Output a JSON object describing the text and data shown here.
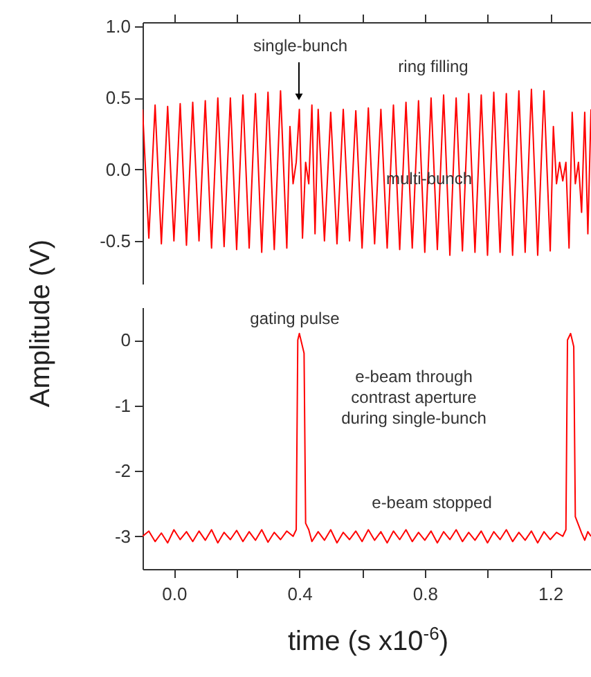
{
  "chart_data": [
    {
      "type": "line",
      "ylabel": "Amplitude (V)",
      "xlim": [
        -0.1,
        1.33
      ],
      "ylim": [
        -0.8,
        1.03
      ],
      "xticks": [
        {
          "value": 0,
          "label": null
        },
        {
          "value": 0.2,
          "label": null
        },
        {
          "value": 0.4,
          "label": null
        },
        {
          "value": 0.6,
          "label": null
        },
        {
          "value": 0.8,
          "label": null
        },
        {
          "value": 1.0,
          "label": null
        },
        {
          "value": 1.2,
          "label": null
        }
      ],
      "yticks": [
        {
          "value": 1,
          "label": "1.0"
        },
        0.5,
        {
          "value": 0,
          "label": "0.0"
        },
        -0.5
      ],
      "tick_labels": "y",
      "grid": false,
      "marker": "none",
      "line_style": "solid",
      "annotations": [
        "single-bunch",
        "ring filling",
        "multi-bunch"
      ],
      "series": [
        {
          "color": "#ff0000",
          "x": [
            -0.1,
            -0.08,
            -0.06,
            -0.04,
            -0.02,
            0,
            0.02,
            0.04,
            0.06,
            0.08,
            0.1,
            0.12,
            0.14,
            0.16,
            0.18,
            0.2,
            0.22,
            0.24,
            0.26,
            0.28,
            0.3,
            0.32,
            0.34,
            0.36,
            0.37,
            0.38,
            0.39,
            0.4,
            0.41,
            0.42,
            0.43,
            0.44,
            0.45,
            0.46,
            0.48,
            0.5,
            0.52,
            0.54,
            0.56,
            0.58,
            0.6,
            0.62,
            0.64,
            0.66,
            0.68,
            0.7,
            0.72,
            0.74,
            0.76,
            0.78,
            0.8,
            0.82,
            0.84,
            0.86,
            0.88,
            0.9,
            0.92,
            0.94,
            0.96,
            0.98,
            1.0,
            1.02,
            1.04,
            1.06,
            1.08,
            1.1,
            1.12,
            1.14,
            1.16,
            1.18,
            1.2,
            1.21,
            1.22,
            1.23,
            1.24,
            1.25,
            1.26,
            1.27,
            1.28,
            1.29,
            1.3,
            1.31,
            1.32,
            1.33
          ],
          "values": [
            0.42,
            -0.48,
            0.45,
            -0.52,
            0.44,
            -0.5,
            0.46,
            -0.53,
            0.47,
            -0.5,
            0.48,
            -0.55,
            0.5,
            -0.54,
            0.5,
            -0.56,
            0.52,
            -0.55,
            0.53,
            -0.58,
            0.54,
            -0.56,
            0.55,
            -0.55,
            0.3,
            -0.1,
            0.05,
            0.42,
            -0.48,
            0.05,
            -0.1,
            0.45,
            -0.45,
            0.42,
            -0.5,
            0.4,
            -0.52,
            0.42,
            -0.5,
            0.41,
            -0.55,
            0.43,
            -0.52,
            0.42,
            -0.55,
            0.45,
            -0.56,
            0.47,
            -0.55,
            0.48,
            -0.58,
            0.5,
            -0.56,
            0.52,
            -0.6,
            0.5,
            -0.57,
            0.53,
            -0.58,
            0.52,
            -0.6,
            0.54,
            -0.58,
            0.53,
            -0.6,
            0.55,
            -0.58,
            0.56,
            -0.6,
            0.55,
            -0.57,
            0.3,
            -0.1,
            0.05,
            -0.08,
            0.05,
            -0.55,
            0.4,
            -0.1,
            0.05,
            -0.3,
            0.4,
            -0.45,
            0.42
          ]
        }
      ]
    },
    {
      "type": "line",
      "xlabel": "time (s x10$^{-6}$)",
      "xlim": [
        -0.1,
        1.33
      ],
      "ylim": [
        -3.5,
        0.5
      ],
      "xticks": [
        {
          "value": 0,
          "label": "0.0"
        },
        {
          "value": 0.2,
          "label": null
        },
        0.4,
        {
          "value": 0.6,
          "label": null
        },
        0.8,
        {
          "value": 1.0,
          "label": null
        },
        1.2
      ],
      "yticks": [
        0,
        -1,
        -2,
        -3
      ],
      "grid": false,
      "marker": "none",
      "line_style": "solid",
      "annotations": [
        "gating pulse",
        "e-beam through\ncontrast aperture\nduring single-bunch",
        "e-beam stopped"
      ],
      "series": [
        {
          "color": "#ff0000",
          "x": [
            -0.1,
            -0.08,
            -0.06,
            -0.04,
            -0.02,
            0,
            0.02,
            0.04,
            0.06,
            0.08,
            0.1,
            0.12,
            0.14,
            0.16,
            0.18,
            0.2,
            0.22,
            0.24,
            0.26,
            0.28,
            0.3,
            0.32,
            0.34,
            0.36,
            0.38,
            0.39,
            0.395,
            0.4,
            0.41,
            0.415,
            0.42,
            0.43,
            0.44,
            0.46,
            0.48,
            0.5,
            0.52,
            0.54,
            0.56,
            0.58,
            0.6,
            0.62,
            0.64,
            0.66,
            0.68,
            0.7,
            0.72,
            0.74,
            0.76,
            0.78,
            0.8,
            0.82,
            0.84,
            0.86,
            0.88,
            0.9,
            0.92,
            0.94,
            0.96,
            0.98,
            1.0,
            1.02,
            1.04,
            1.06,
            1.08,
            1.1,
            1.12,
            1.14,
            1.16,
            1.18,
            1.2,
            1.22,
            1.24,
            1.25,
            1.255,
            1.265,
            1.275,
            1.28,
            1.3,
            1.31,
            1.32,
            1.33
          ],
          "values": [
            -3.0,
            -2.92,
            -3.08,
            -2.95,
            -3.1,
            -2.9,
            -3.05,
            -2.93,
            -3.08,
            -2.92,
            -3.06,
            -2.9,
            -3.1,
            -2.94,
            -3.05,
            -2.91,
            -3.08,
            -2.93,
            -3.06,
            -2.9,
            -3.09,
            -2.94,
            -3.05,
            -2.92,
            -3.0,
            -2.9,
            0.0,
            0.1,
            -0.1,
            -0.2,
            -2.8,
            -2.9,
            -3.08,
            -2.93,
            -3.06,
            -2.9,
            -3.1,
            -2.94,
            -3.05,
            -2.92,
            -3.08,
            -2.9,
            -3.06,
            -2.93,
            -3.1,
            -2.92,
            -3.05,
            -2.9,
            -3.08,
            -2.94,
            -3.06,
            -2.92,
            -3.1,
            -2.93,
            -3.05,
            -2.9,
            -3.08,
            -2.94,
            -3.06,
            -2.92,
            -3.1,
            -2.93,
            -3.05,
            -2.9,
            -3.08,
            -2.94,
            -3.06,
            -2.92,
            -3.1,
            -2.93,
            -3.05,
            -2.94,
            -3.0,
            -2.9,
            0.0,
            0.1,
            -0.1,
            -2.7,
            -2.95,
            -3.06,
            -2.93,
            -3.0
          ]
        }
      ]
    }
  ]
}
